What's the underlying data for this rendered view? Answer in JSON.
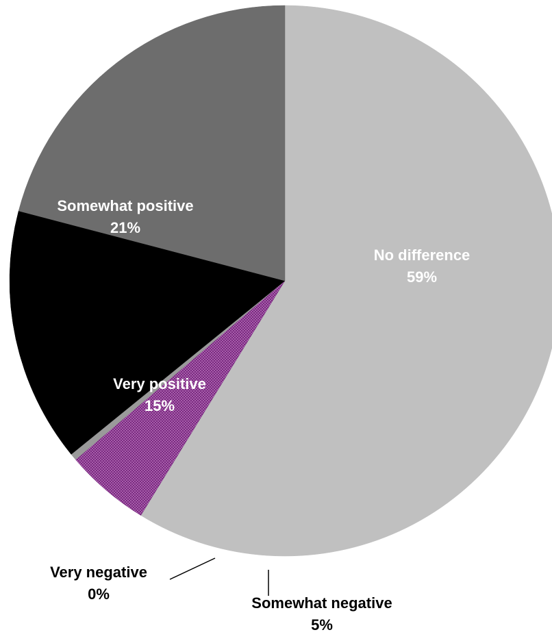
{
  "chart_data": {
    "type": "pie",
    "title": "",
    "slices": [
      {
        "label": "No difference",
        "value": 59,
        "display": "59%",
        "color": "#c0c0c0",
        "label_color": "#ffffff"
      },
      {
        "label": "Somewhat negative",
        "value": 5,
        "display": "5%",
        "color": "#7a2a80",
        "label_color": "#000000",
        "pattern": "dotted"
      },
      {
        "label": "Very negative",
        "value": 0.4,
        "display": "0%",
        "color": "#9a9a9a",
        "label_color": "#000000"
      },
      {
        "label": "Very positive",
        "value": 15,
        "display": "15%",
        "color": "#000000",
        "label_color": "#ffffff"
      },
      {
        "label": "Somewhat positive",
        "value": 21,
        "display": "21%",
        "color": "#6d6d6d",
        "label_color": "#ffffff"
      }
    ]
  }
}
